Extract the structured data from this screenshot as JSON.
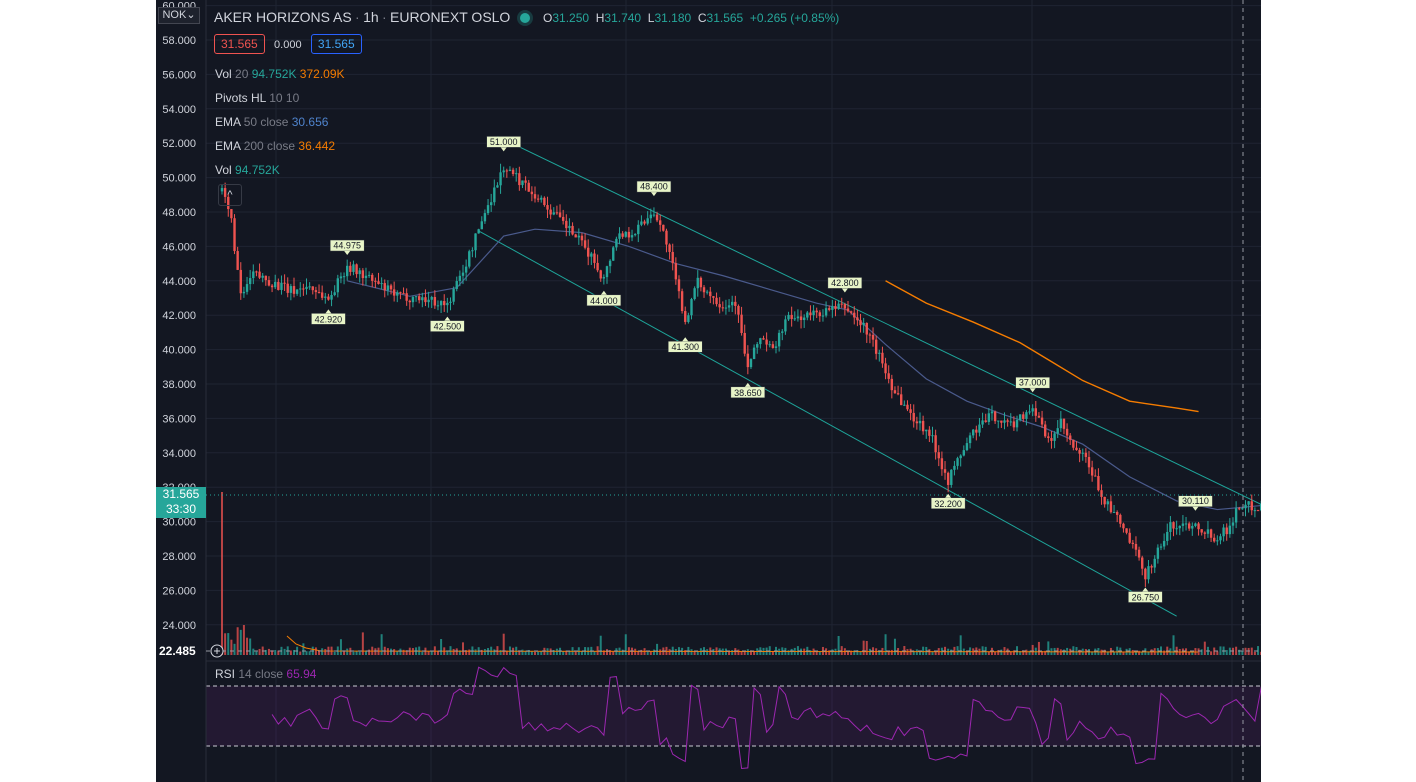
{
  "header": {
    "symbol": "AKER HORIZONS AS",
    "interval": "1h",
    "exchange": "EURONEXT OSLO",
    "o_label": "O",
    "o_value": "31.250",
    "h_label": "H",
    "h_value": "31.740",
    "l_label": "L",
    "l_value": "31.180",
    "c_label": "C",
    "c_value": "31.565",
    "change": "+0.265 (+0.85%)",
    "sell_price": "31.565",
    "spread": "0.000",
    "buy_price": "31.565"
  },
  "indicators": {
    "vol20": {
      "name": "Vol",
      "params": "20",
      "v1": "94.752K",
      "v2": "372.09K"
    },
    "pivots": {
      "name": "Pivots HL",
      "params": "10 10"
    },
    "ema50": {
      "name": "EMA",
      "params": "50 close",
      "value": "30.656"
    },
    "ema200": {
      "name": "EMA",
      "params": "200 close",
      "value": "36.442"
    },
    "vol": {
      "name": "Vol",
      "value": "94.752K"
    },
    "rsi": {
      "name": "RSI",
      "params": "14 close",
      "value": "65.94"
    }
  },
  "currency_label": "NOK",
  "collapse_glyph": "^",
  "last_price": "31.565",
  "countdown": "33:30",
  "pane_low": "22.485",
  "colors": {
    "background": "#131722",
    "up": "#26a69a",
    "down": "#ef5350",
    "ema50": "#4a5a8c",
    "ema200": "#f57c00",
    "channel": "#1ea59a",
    "rsi": "#9c27b0"
  },
  "chart_data": {
    "type": "candlestick",
    "y_axis": {
      "range": [
        22.485,
        60.0
      ],
      "ticks": [
        "60.000",
        "58.000",
        "56.000",
        "54.000",
        "52.000",
        "50.000",
        "48.000",
        "46.000",
        "44.000",
        "42.000",
        "40.000",
        "38.000",
        "36.000",
        "34.000",
        "32.000",
        "30.000",
        "28.000",
        "26.000",
        "24.000"
      ]
    },
    "pivot_labels": [
      {
        "label": "51.000",
        "bar": 90,
        "type": "high"
      },
      {
        "label": "44.975",
        "bar": 40,
        "type": "high"
      },
      {
        "label": "48.400",
        "bar": 138,
        "type": "high"
      },
      {
        "label": "42.800",
        "bar": 199,
        "type": "high"
      },
      {
        "label": "37.000",
        "bar": 259,
        "type": "high"
      },
      {
        "label": "30.110",
        "bar": 311,
        "type": "high"
      },
      {
        "label": "42.920",
        "bar": 34,
        "type": "low"
      },
      {
        "label": "42.500",
        "bar": 72,
        "type": "low"
      },
      {
        "label": "44.000",
        "bar": 122,
        "type": "low"
      },
      {
        "label": "41.300",
        "bar": 148,
        "type": "low"
      },
      {
        "label": "38.650",
        "bar": 168,
        "type": "low"
      },
      {
        "label": "32.200",
        "bar": 232,
        "type": "low"
      },
      {
        "label": "26.750",
        "bar": 295,
        "type": "low"
      }
    ],
    "trend_anchors": [
      [
        0,
        49.2
      ],
      [
        3,
        47.5
      ],
      [
        6,
        43.0
      ],
      [
        10,
        44.4
      ],
      [
        16,
        43.9
      ],
      [
        22,
        43.4
      ],
      [
        28,
        43.7
      ],
      [
        34,
        42.9
      ],
      [
        40,
        44.9
      ],
      [
        48,
        44.0
      ],
      [
        56,
        43.1
      ],
      [
        64,
        43.0
      ],
      [
        72,
        42.6
      ],
      [
        78,
        45.0
      ],
      [
        84,
        48.0
      ],
      [
        90,
        50.6
      ],
      [
        98,
        49.4
      ],
      [
        106,
        47.9
      ],
      [
        112,
        46.8
      ],
      [
        118,
        45.4
      ],
      [
        122,
        44.1
      ],
      [
        126,
        46.6
      ],
      [
        132,
        46.9
      ],
      [
        138,
        48.1
      ],
      [
        142,
        46.3
      ],
      [
        146,
        43.2
      ],
      [
        148,
        41.7
      ],
      [
        152,
        43.9
      ],
      [
        156,
        43.2
      ],
      [
        160,
        42.6
      ],
      [
        164,
        42.8
      ],
      [
        168,
        38.9
      ],
      [
        172,
        40.8
      ],
      [
        176,
        39.9
      ],
      [
        180,
        41.7
      ],
      [
        190,
        42.1
      ],
      [
        199,
        42.5
      ],
      [
        206,
        41.1
      ],
      [
        210,
        39.6
      ],
      [
        214,
        37.9
      ],
      [
        220,
        36.2
      ],
      [
        226,
        35.2
      ],
      [
        232,
        32.4
      ],
      [
        236,
        33.9
      ],
      [
        240,
        35.2
      ],
      [
        246,
        36.2
      ],
      [
        252,
        35.6
      ],
      [
        259,
        36.7
      ],
      [
        264,
        34.6
      ],
      [
        268,
        35.7
      ],
      [
        272,
        34.2
      ],
      [
        276,
        33.6
      ],
      [
        282,
        31.2
      ],
      [
        288,
        29.6
      ],
      [
        292,
        28.1
      ],
      [
        295,
        26.9
      ],
      [
        299,
        28.3
      ],
      [
        303,
        29.7
      ],
      [
        311,
        29.9
      ],
      [
        317,
        29.1
      ],
      [
        321,
        29.5
      ],
      [
        325,
        30.9
      ],
      [
        332,
        30.9
      ],
      [
        336,
        31.6
      ]
    ],
    "ema50_points": [
      [
        40,
        44.0
      ],
      [
        60,
        43.1
      ],
      [
        75,
        43.6
      ],
      [
        90,
        46.6
      ],
      [
        100,
        47.0
      ],
      [
        115,
        46.8
      ],
      [
        130,
        46.0
      ],
      [
        145,
        45.0
      ],
      [
        160,
        44.3
      ],
      [
        175,
        43.5
      ],
      [
        190,
        42.7
      ],
      [
        200,
        42.3
      ],
      [
        212,
        40.3
      ],
      [
        225,
        38.3
      ],
      [
        238,
        37.0
      ],
      [
        250,
        36.2
      ],
      [
        262,
        35.5
      ],
      [
        275,
        34.5
      ],
      [
        290,
        32.6
      ],
      [
        305,
        31.2
      ],
      [
        318,
        30.7
      ],
      [
        336,
        31.0
      ]
    ],
    "ema200_points": [
      [
        212,
        44.0
      ],
      [
        225,
        42.7
      ],
      [
        240,
        41.6
      ],
      [
        255,
        40.4
      ],
      [
        265,
        39.3
      ],
      [
        275,
        38.2
      ],
      [
        290,
        37.0
      ],
      [
        305,
        36.6
      ],
      [
        312,
        36.4
      ]
    ],
    "channel_upper": [
      [
        88,
        52.4
      ],
      [
        340,
        30.3
      ]
    ],
    "channel_lower": [
      [
        82,
        46.9
      ],
      [
        305,
        24.5
      ]
    ],
    "rsi": {
      "upper_band": 70,
      "lower_band": 30
    }
  }
}
